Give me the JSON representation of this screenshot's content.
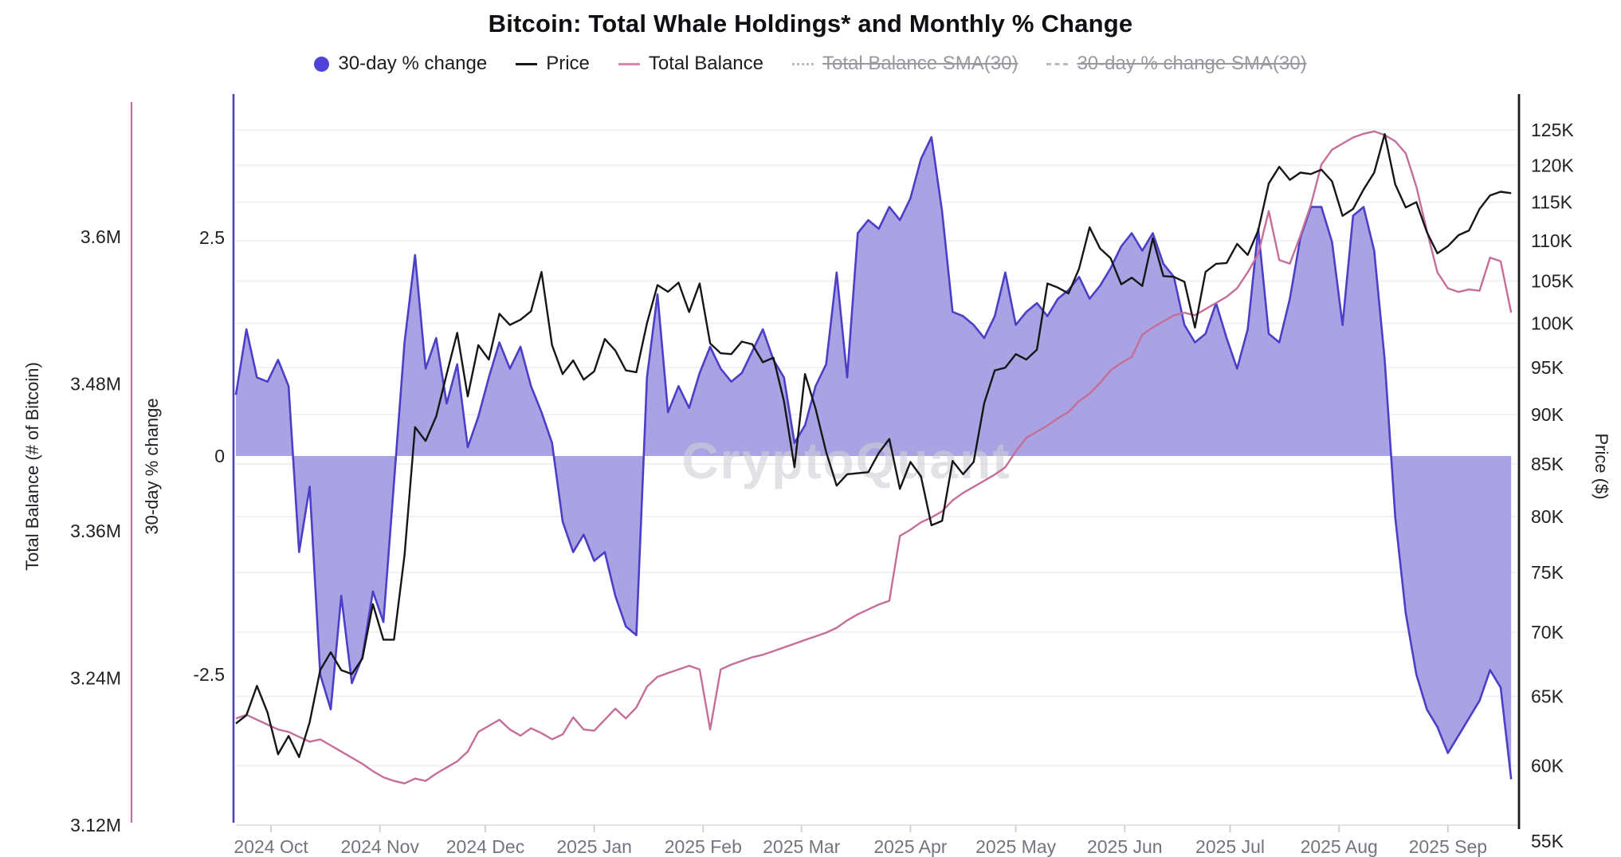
{
  "title": "Bitcoin: Total Whale Holdings* and Monthly % Change",
  "watermark": "CryptoQuant",
  "colors": {
    "area_fill": "#a9a2e3",
    "area_line": "#4b3fc8",
    "legend_dot": "#4e42d8",
    "price_line": "#161616",
    "balance_line": "#c46e99",
    "disabled_gray": "#a9a9b1",
    "grid": "#f1f1f4",
    "bottom_axis": "#e2e2e8",
    "tick_text": "#212126",
    "month_text": "#74747e",
    "watermark_color": "#cfcfd8"
  },
  "legend": {
    "items": [
      {
        "label": "30-day % change",
        "marker": "dot",
        "color": "#4e42d8",
        "enabled": true
      },
      {
        "label": "Price",
        "marker": "line",
        "color": "#161616",
        "enabled": true
      },
      {
        "label": "Total Balance",
        "marker": "line",
        "color": "#cf8bae",
        "enabled": true
      },
      {
        "label": "Total Balance SMA(30)",
        "marker": "dotted",
        "color": "#b9b9c0",
        "enabled": false
      },
      {
        "label": "30-day % change SMA(30)",
        "marker": "dashed",
        "color": "#b9b9c0",
        "enabled": false
      }
    ]
  },
  "axes": {
    "balance": {
      "title": "Total Balance (# of Bitcoin)",
      "ticks": [
        {
          "label": "3.6M",
          "value": 3.6
        },
        {
          "label": "3.48M",
          "value": 3.48
        },
        {
          "label": "3.36M",
          "value": 3.36
        },
        {
          "label": "3.24M",
          "value": 3.24
        },
        {
          "label": "3.12M",
          "value": 3.12
        }
      ],
      "range": [
        3.12,
        3.712
      ]
    },
    "pct": {
      "title": "30-day % change",
      "ticks": [
        {
          "label": "2.5",
          "value": 2.5
        },
        {
          "label": "0",
          "value": 0
        },
        {
          "label": "-2.5",
          "value": -2.5
        }
      ],
      "range": [
        -4.05,
        4.05
      ]
    },
    "price": {
      "title": "Price ($)",
      "scale": "log",
      "ticks": [
        {
          "label": "125K",
          "value": 125
        },
        {
          "label": "120K",
          "value": 120
        },
        {
          "label": "115K",
          "value": 115
        },
        {
          "label": "110K",
          "value": 110
        },
        {
          "label": "105K",
          "value": 105
        },
        {
          "label": "100K",
          "value": 100
        },
        {
          "label": "95K",
          "value": 95
        },
        {
          "label": "90K",
          "value": 90
        },
        {
          "label": "85K",
          "value": 85
        },
        {
          "label": "80K",
          "value": 80
        },
        {
          "label": "75K",
          "value": 75
        },
        {
          "label": "70K",
          "value": 70
        },
        {
          "label": "65K",
          "value": 65
        },
        {
          "label": "60K",
          "value": 60
        },
        {
          "label": "55K",
          "value": 55
        }
      ]
    },
    "x": {
      "ticks": [
        {
          "label": "2024 Oct",
          "day": 10
        },
        {
          "label": "2024 Nov",
          "day": 41
        },
        {
          "label": "2024 Dec",
          "day": 71
        },
        {
          "label": "2025 Jan",
          "day": 102
        },
        {
          "label": "2025 Feb",
          "day": 133
        },
        {
          "label": "2025 Mar",
          "day": 161
        },
        {
          "label": "2025 Apr",
          "day": 192
        },
        {
          "label": "2025 May",
          "day": 222
        },
        {
          "label": "2025 Jun",
          "day": 253
        },
        {
          "label": "2025 Jul",
          "day": 283
        },
        {
          "label": "2025 Aug",
          "day": 314
        },
        {
          "label": "2025 Sep",
          "day": 345
        }
      ]
    }
  },
  "chart_data": {
    "type": "area+line",
    "x_start_date": "2024-09-21",
    "sample_interval_days": 3,
    "total_days": 365,
    "series": [
      {
        "name": "30-day % change",
        "axis": "pct",
        "style": "area",
        "baseline": 0,
        "values": [
          0.7,
          1.45,
          0.9,
          0.85,
          1.1,
          0.8,
          -1.1,
          -0.35,
          -2.5,
          -2.9,
          -1.6,
          -2.6,
          -2.3,
          -1.55,
          -1.9,
          -0.3,
          1.3,
          2.3,
          1.0,
          1.35,
          0.6,
          1.05,
          0.1,
          0.45,
          0.9,
          1.3,
          1.0,
          1.25,
          0.8,
          0.5,
          0.15,
          -0.75,
          -1.1,
          -0.9,
          -1.2,
          -1.1,
          -1.6,
          -1.95,
          -2.05,
          0.9,
          1.85,
          0.5,
          0.8,
          0.55,
          0.95,
          1.25,
          1.0,
          0.85,
          0.95,
          1.2,
          1.45,
          1.1,
          0.9,
          0.15,
          0.35,
          0.8,
          1.05,
          2.1,
          0.9,
          2.55,
          2.7,
          2.6,
          2.85,
          2.7,
          2.95,
          3.4,
          3.65,
          2.8,
          1.65,
          1.6,
          1.5,
          1.35,
          1.6,
          2.1,
          1.5,
          1.65,
          1.75,
          1.6,
          1.8,
          1.9,
          2.05,
          1.8,
          1.95,
          2.15,
          2.4,
          2.55,
          2.35,
          2.55,
          2.2,
          2.05,
          1.5,
          1.3,
          1.4,
          1.75,
          1.35,
          1.0,
          1.45,
          2.6,
          1.4,
          1.3,
          1.8,
          2.5,
          2.85,
          2.85,
          2.45,
          1.5,
          2.75,
          2.85,
          2.35,
          1.1,
          -0.7,
          -1.8,
          -2.5,
          -2.9,
          -3.1,
          -3.4,
          -3.2,
          -3.0,
          -2.8,
          -2.45,
          -2.65,
          -3.7
        ]
      },
      {
        "name": "Price",
        "axis": "price",
        "style": "line",
        "unit": "K$",
        "values": [
          63.0,
          63.6,
          65.8,
          63.8,
          60.8,
          62.1,
          60.6,
          63.1,
          67.0,
          68.4,
          67.0,
          66.7,
          67.9,
          72.3,
          69.4,
          69.4,
          76.5,
          88.7,
          87.3,
          89.8,
          94.3,
          98.9,
          91.9,
          97.5,
          95.9,
          101.1,
          99.8,
          100.4,
          101.4,
          106.1,
          97.5,
          94.3,
          95.8,
          93.7,
          94.6,
          98.2,
          96.9,
          94.7,
          94.5,
          100.0,
          104.5,
          103.7,
          104.8,
          101.3,
          104.7,
          97.7,
          96.6,
          96.5,
          97.9,
          97.6,
          95.6,
          96.1,
          91.4,
          84.7,
          94.3,
          90.6,
          86.2,
          82.9,
          84.0,
          84.1,
          84.2,
          86.1,
          87.5,
          82.6,
          85.2,
          83.8,
          79.2,
          79.6,
          85.3,
          84.0,
          85.2,
          91.2,
          94.7,
          95.0,
          96.5,
          95.9,
          97.0,
          104.7,
          104.2,
          103.5,
          106.5,
          111.7,
          109.0,
          107.8,
          104.6,
          105.4,
          104.4,
          110.3,
          105.6,
          105.5,
          104.9,
          99.5,
          106.1,
          107.1,
          107.2,
          109.6,
          108.2,
          111.3,
          117.5,
          119.8,
          118.0,
          119.0,
          118.8,
          119.4,
          117.8,
          113.2,
          114.1,
          116.7,
          119.0,
          124.4,
          117.4,
          114.3,
          115.0,
          111.1,
          108.4,
          109.3,
          110.7,
          111.3,
          114.1,
          115.9,
          116.4,
          116.2
        ]
      },
      {
        "name": "Total Balance",
        "axis": "balance",
        "style": "line",
        "unit": "M BTC",
        "values": [
          3.207,
          3.21,
          3.206,
          3.202,
          3.198,
          3.196,
          3.192,
          3.188,
          3.19,
          3.185,
          3.18,
          3.175,
          3.17,
          3.164,
          3.159,
          3.156,
          3.154,
          3.158,
          3.156,
          3.162,
          3.167,
          3.172,
          3.18,
          3.196,
          3.201,
          3.206,
          3.198,
          3.193,
          3.199,
          3.195,
          3.19,
          3.194,
          3.208,
          3.198,
          3.197,
          3.206,
          3.215,
          3.207,
          3.216,
          3.233,
          3.241,
          3.244,
          3.247,
          3.25,
          3.247,
          3.198,
          3.247,
          3.251,
          3.254,
          3.257,
          3.259,
          3.262,
          3.265,
          3.268,
          3.271,
          3.274,
          3.277,
          3.281,
          3.287,
          3.292,
          3.296,
          3.3,
          3.303,
          3.356,
          3.361,
          3.367,
          3.371,
          3.376,
          3.385,
          3.391,
          3.396,
          3.401,
          3.406,
          3.412,
          3.425,
          3.436,
          3.441,
          3.446,
          3.452,
          3.457,
          3.466,
          3.472,
          3.481,
          3.491,
          3.497,
          3.502,
          3.52,
          3.526,
          3.531,
          3.536,
          3.538,
          3.536,
          3.541,
          3.546,
          3.551,
          3.558,
          3.571,
          3.586,
          3.621,
          3.581,
          3.578,
          3.601,
          3.626,
          3.659,
          3.671,
          3.676,
          3.681,
          3.684,
          3.686,
          3.683,
          3.678,
          3.668,
          3.641,
          3.605,
          3.571,
          3.558,
          3.555,
          3.557,
          3.556,
          3.583,
          3.58,
          3.538
        ]
      }
    ]
  }
}
